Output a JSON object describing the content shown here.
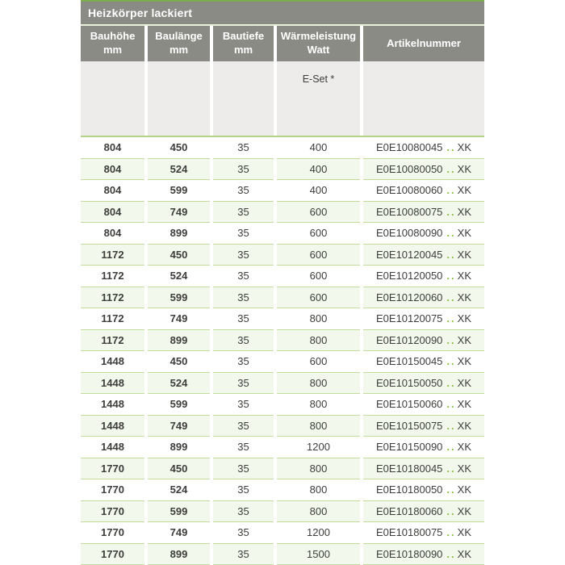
{
  "title": "Heizkörper lackiert",
  "columns": [
    {
      "label": "Bauhöhe",
      "unit": "mm"
    },
    {
      "label": "Baulänge",
      "unit": "mm"
    },
    {
      "label": "Bautiefe",
      "unit": "mm"
    },
    {
      "label": "Wärmeleistung",
      "unit": "Watt"
    },
    {
      "label": "Artikelnummer",
      "unit": ""
    }
  ],
  "subheader": {
    "eset_label": "E-Set *"
  },
  "article_format": {
    "dots": "..",
    "suffix": "XK"
  },
  "rows": [
    [
      "804",
      "450",
      "35",
      "400",
      "E0E10080045"
    ],
    [
      "804",
      "524",
      "35",
      "400",
      "E0E10080050"
    ],
    [
      "804",
      "599",
      "35",
      "400",
      "E0E10080060"
    ],
    [
      "804",
      "749",
      "35",
      "600",
      "E0E10080075"
    ],
    [
      "804",
      "899",
      "35",
      "600",
      "E0E10080090"
    ],
    [
      "1172",
      "450",
      "35",
      "600",
      "E0E10120045"
    ],
    [
      "1172",
      "524",
      "35",
      "600",
      "E0E10120050"
    ],
    [
      "1172",
      "599",
      "35",
      "600",
      "E0E10120060"
    ],
    [
      "1172",
      "749",
      "35",
      "800",
      "E0E10120075"
    ],
    [
      "1172",
      "899",
      "35",
      "800",
      "E0E10120090"
    ],
    [
      "1448",
      "450",
      "35",
      "600",
      "E0E10150045"
    ],
    [
      "1448",
      "524",
      "35",
      "800",
      "E0E10150050"
    ],
    [
      "1448",
      "599",
      "35",
      "800",
      "E0E10150060"
    ],
    [
      "1448",
      "749",
      "35",
      "800",
      "E0E10150075"
    ],
    [
      "1448",
      "899",
      "35",
      "1200",
      "E0E10150090"
    ],
    [
      "1770",
      "450",
      "35",
      "800",
      "E0E10180045"
    ],
    [
      "1770",
      "524",
      "35",
      "800",
      "E0E10180050"
    ],
    [
      "1770",
      "599",
      "35",
      "800",
      "E0E10180060"
    ],
    [
      "1770",
      "749",
      "35",
      "1200",
      "E0E10180075"
    ],
    [
      "1770",
      "899",
      "35",
      "1500",
      "E0E10180090"
    ]
  ],
  "colors": {
    "accent_green": "#7dad4e",
    "header_gray": "#8b8b86",
    "divider_green": "#b2d285",
    "row_alt_green": "#f3f8ec",
    "row_border_green": "#c3db9c",
    "dots_green": "#8bbf43",
    "subheader_gray": "#edecea",
    "text_dark": "#3d3d3b"
  }
}
